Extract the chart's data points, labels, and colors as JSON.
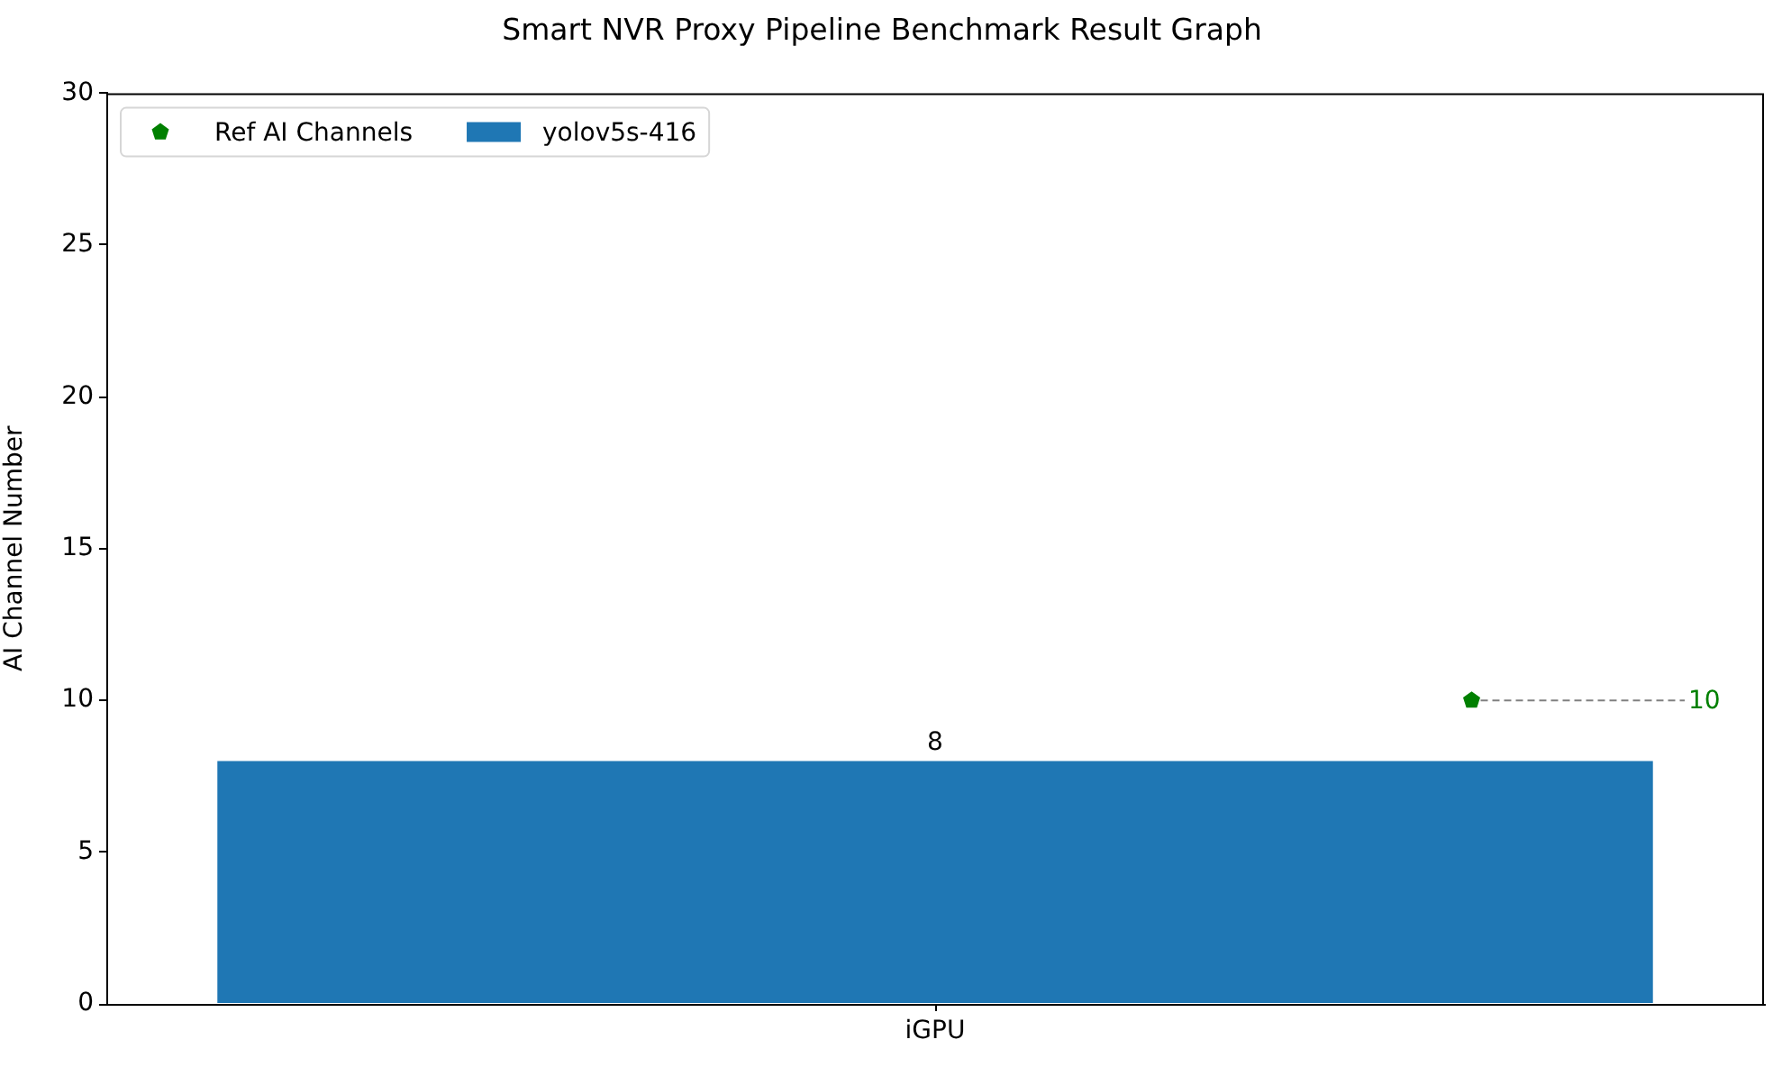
{
  "chart_data": {
    "type": "bar",
    "title": "Smart NVR Proxy Pipeline Benchmark Result Graph",
    "ylabel": "AI Channel Number",
    "categories": [
      "iGPU"
    ],
    "series": [
      {
        "name": "Ref AI Channels",
        "type": "scatter",
        "color": "#008000",
        "values": [
          10
        ]
      },
      {
        "name": "yolov5s-416",
        "color": "#1f77b4",
        "values": [
          8
        ],
        "value_labels": [
          "8"
        ]
      }
    ],
    "annotations": [
      "10"
    ],
    "ylim": [
      0,
      30
    ],
    "yticks": [
      0,
      5,
      10,
      15,
      20,
      25,
      30
    ],
    "grid": false,
    "legend": "top left"
  }
}
